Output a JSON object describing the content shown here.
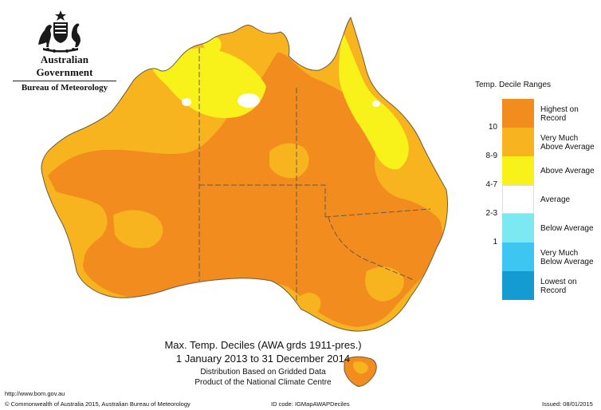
{
  "header": {
    "agency_line1": "Australian Government",
    "agency_line2": "Bureau of Meteorology"
  },
  "legend": {
    "title": "Temp. Decile Ranges",
    "items": [
      {
        "label_lines": [
          "Highest on",
          "Record"
        ],
        "value": "",
        "color": "#F28C1E"
      },
      {
        "label_lines": [
          "Very Much",
          "Above Average"
        ],
        "value": "10",
        "color": "#F7B41E"
      },
      {
        "label_lines": [
          "Above Average"
        ],
        "value": "8-9",
        "color": "#F9F21A"
      },
      {
        "label_lines": [
          "Average"
        ],
        "value": "4-7",
        "color": "#FFFFFF"
      },
      {
        "label_lines": [
          "Below Average"
        ],
        "value": "2-3",
        "color": "#7CE8F2"
      },
      {
        "label_lines": [
          "Very Much",
          "Below Average"
        ],
        "value": "1",
        "color": "#3EC6F2"
      },
      {
        "label_lines": [
          "Lowest on",
          "Record"
        ],
        "value": "",
        "color": "#149BD2"
      }
    ]
  },
  "caption": {
    "line1": "Max. Temp. Deciles (AWA grds 1911-pres.)",
    "line2": "1 January 2013 to 31 December 2014",
    "line3": "Distribution Based on Gridded Data",
    "line4": "Product of the National Climate Centre"
  },
  "footer": {
    "url": "http://www.bom.gov.au",
    "copyright": "© Commonwealth of Australia 2015, Australian Bureau of Meteorology",
    "id_code": "ID code: IGMapAWAPDeciles",
    "issued": "Issued: 08/01/2015"
  },
  "colors": {
    "highest": "#F28C1E",
    "very_much_above": "#F7B41E",
    "above": "#F9F21A",
    "average": "#FFFFFF",
    "boundary": "#6b5a40"
  }
}
